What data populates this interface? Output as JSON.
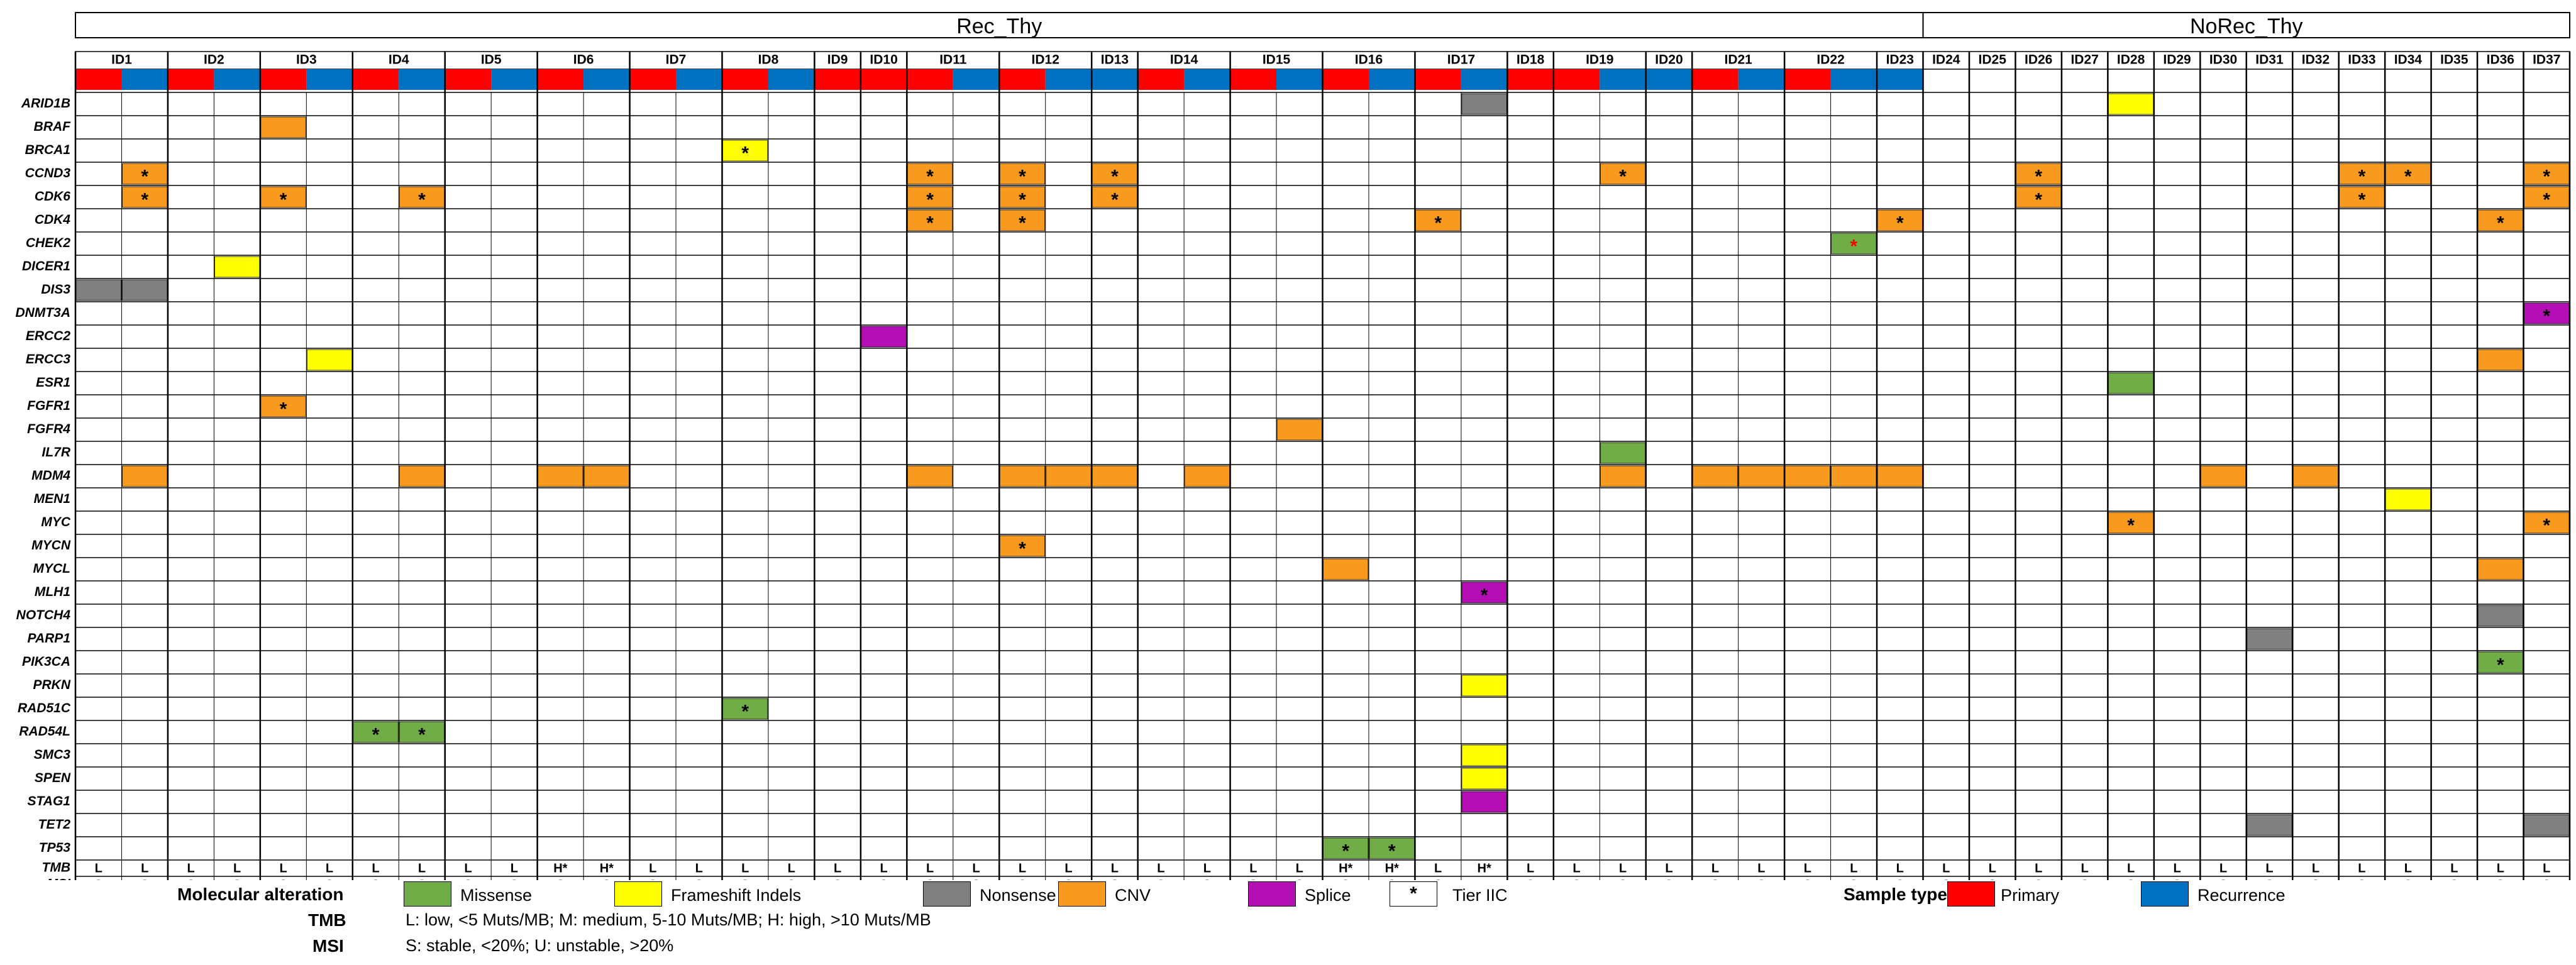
{
  "chart_data": {
    "type": "heatmap",
    "groups": [
      {
        "name": "Rec_Thy",
        "ids": [
          "ID1",
          "ID2",
          "ID3",
          "ID4",
          "ID5",
          "ID6",
          "ID7",
          "ID8",
          "ID9",
          "ID10",
          "ID11",
          "ID12",
          "ID13",
          "ID14",
          "ID15",
          "ID16",
          "ID17",
          "ID18",
          "ID19",
          "ID20",
          "ID21",
          "ID22",
          "ID23"
        ]
      },
      {
        "name": "NoRec_Thy",
        "ids": [
          "ID24",
          "ID25",
          "ID26",
          "ID27",
          "ID28",
          "ID29",
          "ID30",
          "ID31",
          "ID32",
          "ID33",
          "ID34",
          "ID35",
          "ID36",
          "ID37"
        ]
      }
    ],
    "samples": [
      {
        "id": "ID1",
        "types": [
          "P",
          "R"
        ]
      },
      {
        "id": "ID2",
        "types": [
          "P",
          "R"
        ]
      },
      {
        "id": "ID3",
        "types": [
          "P",
          "R"
        ]
      },
      {
        "id": "ID4",
        "types": [
          "P",
          "R"
        ]
      },
      {
        "id": "ID5",
        "types": [
          "P",
          "R"
        ]
      },
      {
        "id": "ID6",
        "types": [
          "P",
          "R"
        ]
      },
      {
        "id": "ID7",
        "types": [
          "P",
          "R"
        ]
      },
      {
        "id": "ID8",
        "types": [
          "P",
          "R"
        ]
      },
      {
        "id": "ID9",
        "types": [
          "P"
        ]
      },
      {
        "id": "ID10",
        "types": [
          "P"
        ]
      },
      {
        "id": "ID11",
        "types": [
          "P",
          "R"
        ]
      },
      {
        "id": "ID12",
        "types": [
          "P",
          "R"
        ]
      },
      {
        "id": "ID13",
        "types": [
          "R"
        ]
      },
      {
        "id": "ID14",
        "types": [
          "P",
          "R"
        ]
      },
      {
        "id": "ID15",
        "types": [
          "P",
          "R"
        ]
      },
      {
        "id": "ID16",
        "types": [
          "P",
          "R"
        ]
      },
      {
        "id": "ID17",
        "types": [
          "P",
          "R"
        ]
      },
      {
        "id": "ID18",
        "types": [
          "P"
        ]
      },
      {
        "id": "ID19",
        "types": [
          "P",
          "R"
        ]
      },
      {
        "id": "ID20",
        "types": [
          "R"
        ]
      },
      {
        "id": "ID21",
        "types": [
          "P",
          "R"
        ]
      },
      {
        "id": "ID22",
        "types": [
          "P",
          "R"
        ]
      },
      {
        "id": "ID23",
        "types": [
          "R"
        ]
      },
      {
        "id": "ID24",
        "types": []
      },
      {
        "id": "ID25",
        "types": []
      },
      {
        "id": "ID26",
        "types": []
      },
      {
        "id": "ID27",
        "types": []
      },
      {
        "id": "ID28",
        "types": []
      },
      {
        "id": "ID29",
        "types": []
      },
      {
        "id": "ID30",
        "types": []
      },
      {
        "id": "ID31",
        "types": []
      },
      {
        "id": "ID32",
        "types": []
      },
      {
        "id": "ID33",
        "types": []
      },
      {
        "id": "ID34",
        "types": []
      },
      {
        "id": "ID35",
        "types": []
      },
      {
        "id": "ID36",
        "types": []
      },
      {
        "id": "ID37",
        "types": []
      }
    ],
    "genes": [
      "ARID1B",
      "BRAF",
      "BRCA1",
      "CCND3",
      "CDK6",
      "CDK4",
      "CHEK2",
      "DICER1",
      "DIS3",
      "DNMT3A",
      "ERCC2",
      "ERCC3",
      "ESR1",
      "FGFR1",
      "FGFR4",
      "IL7R",
      "MDM4",
      "MEN1",
      "MYC",
      "MYCN",
      "MYCL",
      "MLH1",
      "NOTCH4",
      "PARP1",
      "PIK3CA",
      "PRKN",
      "RAD51C",
      "RAD54L",
      "SMC3",
      "SPEN",
      "STAG1",
      "TET2",
      "TP53"
    ],
    "alterations": [
      {
        "gene": "ARID1B",
        "col": 30,
        "type": "nonsense"
      },
      {
        "gene": "ARID1B",
        "col": 44,
        "type": "frameshift"
      },
      {
        "gene": "BRAF",
        "col": 4,
        "type": "cnv"
      },
      {
        "gene": "BRCA1",
        "col": 14,
        "type": "frameshift",
        "tier": true
      },
      {
        "gene": "CCND3",
        "col": 1,
        "type": "cnv",
        "tier": true
      },
      {
        "gene": "CCND3",
        "col": 18,
        "type": "cnv",
        "tier": true
      },
      {
        "gene": "CCND3",
        "col": 20,
        "type": "cnv",
        "tier": true
      },
      {
        "gene": "CCND3",
        "col": 22,
        "type": "cnv",
        "tier": true
      },
      {
        "gene": "CCND3",
        "col": 33,
        "type": "cnv",
        "tier": true
      },
      {
        "gene": "CCND3",
        "col": 42,
        "type": "cnv",
        "tier": true
      },
      {
        "gene": "CCND3",
        "col": 49,
        "type": "cnv",
        "tier": true
      },
      {
        "gene": "CCND3",
        "col": 50,
        "type": "cnv",
        "tier": true
      },
      {
        "gene": "CCND3",
        "col": 53,
        "type": "cnv",
        "tier": true
      },
      {
        "gene": "CDK6",
        "col": 1,
        "type": "cnv",
        "tier": true
      },
      {
        "gene": "CDK6",
        "col": 4,
        "type": "cnv",
        "tier": true
      },
      {
        "gene": "CDK6",
        "col": 7,
        "type": "cnv",
        "tier": true
      },
      {
        "gene": "CDK6",
        "col": 18,
        "type": "cnv",
        "tier": true
      },
      {
        "gene": "CDK6",
        "col": 20,
        "type": "cnv",
        "tier": true
      },
      {
        "gene": "CDK6",
        "col": 22,
        "type": "cnv",
        "tier": true
      },
      {
        "gene": "CDK6",
        "col": 42,
        "type": "cnv",
        "tier": true
      },
      {
        "gene": "CDK6",
        "col": 49,
        "type": "cnv",
        "tier": true
      },
      {
        "gene": "CDK6",
        "col": 53,
        "type": "cnv",
        "tier": true
      },
      {
        "gene": "CDK4",
        "col": 18,
        "type": "cnv",
        "tier": true
      },
      {
        "gene": "CDK4",
        "col": 20,
        "type": "cnv",
        "tier": true
      },
      {
        "gene": "CDK4",
        "col": 29,
        "type": "cnv",
        "tier": true
      },
      {
        "gene": "CDK4",
        "col": 39,
        "type": "cnv",
        "tier": true
      },
      {
        "gene": "CDK4",
        "col": 52,
        "type": "cnv",
        "tier": true
      },
      {
        "gene": "CHEK2",
        "col": 38,
        "type": "missense",
        "tier": true
      },
      {
        "gene": "DICER1",
        "col": 3,
        "type": "frameshift"
      },
      {
        "gene": "DIS3",
        "col": 0,
        "type": "nonsense"
      },
      {
        "gene": "DIS3",
        "col": 1,
        "type": "nonsense"
      },
      {
        "gene": "DNMT3A",
        "col": 53,
        "type": "splice",
        "tier": true
      },
      {
        "gene": "ERCC2",
        "col": 17,
        "type": "splice"
      },
      {
        "gene": "ERCC3",
        "col": 5,
        "type": "frameshift"
      },
      {
        "gene": "ESR1",
        "col": 44,
        "type": "missense"
      },
      {
        "gene": "ERCC3",
        "col": 52,
        "type": "cnv"
      },
      {
        "gene": "FGFR1",
        "col": 4,
        "type": "cnv",
        "tier": true
      },
      {
        "gene": "FGFR4",
        "col": 26,
        "type": "cnv"
      },
      {
        "gene": "IL7R",
        "col": 33,
        "type": "missense"
      },
      {
        "gene": "MDM4",
        "col": 1,
        "type": "cnv"
      },
      {
        "gene": "MDM4",
        "col": 7,
        "type": "cnv"
      },
      {
        "gene": "MDM4",
        "col": 10,
        "type": "cnv"
      },
      {
        "gene": "MDM4",
        "col": 11,
        "type": "cnv"
      },
      {
        "gene": "MDM4",
        "col": 18,
        "type": "cnv"
      },
      {
        "gene": "MDM4",
        "col": 20,
        "type": "cnv"
      },
      {
        "gene": "MDM4",
        "col": 21,
        "type": "cnv"
      },
      {
        "gene": "MDM4",
        "col": 22,
        "type": "cnv"
      },
      {
        "gene": "MDM4",
        "col": 24,
        "type": "cnv"
      },
      {
        "gene": "MDM4",
        "col": 33,
        "type": "cnv"
      },
      {
        "gene": "MDM4",
        "col": 35,
        "type": "cnv"
      },
      {
        "gene": "MDM4",
        "col": 36,
        "type": "cnv"
      },
      {
        "gene": "MDM4",
        "col": 37,
        "type": "cnv"
      },
      {
        "gene": "MDM4",
        "col": 38,
        "type": "cnv"
      },
      {
        "gene": "MDM4",
        "col": 39,
        "type": "cnv"
      },
      {
        "gene": "MDM4",
        "col": 46,
        "type": "cnv"
      },
      {
        "gene": "MDM4",
        "col": 48,
        "type": "cnv"
      },
      {
        "gene": "MEN1",
        "col": 50,
        "type": "frameshift"
      },
      {
        "gene": "MYC",
        "col": 44,
        "type": "cnv",
        "tier": true
      },
      {
        "gene": "MYC",
        "col": 53,
        "type": "cnv",
        "tier": true
      },
      {
        "gene": "MYCN",
        "col": 20,
        "type": "cnv",
        "tier": true
      },
      {
        "gene": "MYCL",
        "col": 27,
        "type": "cnv"
      },
      {
        "gene": "MYCL",
        "col": 52,
        "type": "cnv"
      },
      {
        "gene": "MLH1",
        "col": 30,
        "type": "splice",
        "tier": true
      },
      {
        "gene": "NOTCH4",
        "col": 52,
        "type": "nonsense"
      },
      {
        "gene": "PARP1",
        "col": 47,
        "type": "nonsense"
      },
      {
        "gene": "PIK3CA",
        "col": 52,
        "type": "missense",
        "tier": true
      },
      {
        "gene": "PRKN",
        "col": 30,
        "type": "frameshift"
      },
      {
        "gene": "RAD51C",
        "col": 14,
        "type": "missense",
        "tier": true
      },
      {
        "gene": "RAD54L",
        "col": 6,
        "type": "missense",
        "tier": true
      },
      {
        "gene": "RAD54L",
        "col": 7,
        "type": "missense",
        "tier": true
      },
      {
        "gene": "SMC3",
        "col": 30,
        "type": "frameshift"
      },
      {
        "gene": "SPEN",
        "col": 30,
        "type": "frameshift"
      },
      {
        "gene": "STAG1",
        "col": 30,
        "type": "splice"
      },
      {
        "gene": "TET2",
        "col": 47,
        "type": "nonsense"
      },
      {
        "gene": "TET2",
        "col": 53,
        "type": "nonsense"
      },
      {
        "gene": "TP53",
        "col": 27,
        "type": "missense",
        "tier": true
      },
      {
        "gene": "TP53",
        "col": 28,
        "type": "missense",
        "tier": true
      }
    ],
    "tmb_label": "TMB",
    "msi_label": "MSI",
    "tmb": [
      "L",
      "L",
      "L",
      "L",
      "L",
      "L",
      "L",
      "L",
      "L",
      "L",
      "H*",
      "H*",
      "L",
      "L",
      "L",
      "L",
      "L",
      "L",
      "L",
      "L",
      "L",
      "L",
      "L",
      "L",
      "L",
      "L",
      "L",
      "H*",
      "H*",
      "L",
      "H*",
      "L",
      "L",
      "L",
      "L",
      "L",
      "L",
      "L",
      "L",
      "L",
      "L",
      "L",
      "L",
      "L",
      "L",
      "L",
      "L",
      "L",
      "L",
      "L",
      "L",
      "L",
      "L",
      "L"
    ],
    "msi": [
      "S",
      "S",
      "S",
      "S",
      "S",
      "S",
      "S",
      "S",
      "S",
      "S",
      "S",
      "S",
      "S",
      "S",
      "S",
      "S",
      "S",
      "S",
      "S",
      "S",
      "S",
      "S",
      "S",
      "S",
      "S",
      "S",
      "S",
      "S",
      "S",
      "S",
      "-",
      "S",
      "S",
      "S",
      "S",
      "S",
      "S",
      "S",
      "S",
      "S",
      "S",
      "S",
      "S",
      "S",
      "S",
      "S",
      "S",
      "S",
      "S",
      "S",
      "S",
      "S",
      "S",
      "S"
    ],
    "colors": {
      "missense": "#70ad47",
      "frameshift": "#ffff00",
      "nonsense": "#808080",
      "cnv": "#f79a1e",
      "splice": "#b40fb4",
      "primary": "#ff0000",
      "recurrence": "#0070c0"
    }
  },
  "legend": {
    "alteration_title": "Molecular alteration",
    "items": [
      {
        "label": "Missense",
        "color": "#70ad47"
      },
      {
        "label": "Frameshift Indels",
        "color": "#ffff00"
      },
      {
        "label": "Nonsense",
        "color": "#808080"
      },
      {
        "label": "CNV",
        "color": "#f79a1e"
      },
      {
        "label": "Splice",
        "color": "#b40fb4"
      },
      {
        "label": "Tier IIC",
        "color": "#ffffff",
        "star": "*"
      }
    ],
    "sample_title": "Sample type",
    "sample_items": [
      {
        "label": "Primary",
        "color": "#ff0000"
      },
      {
        "label": "Recurrence",
        "color": "#0070c0"
      }
    ],
    "tmb_title": "TMB",
    "tmb_text": "L: low, <5 Muts/MB; M: medium, 5-10 Muts/MB; H: high, >10 Muts/MB",
    "msi_title": "MSI",
    "msi_text": "S: stable, <20%; U: unstable, >20%"
  }
}
